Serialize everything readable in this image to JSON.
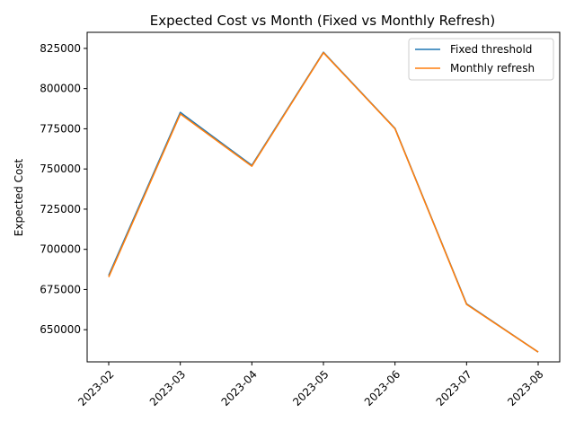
{
  "chart_data": {
    "type": "line",
    "title": "Expected Cost vs Month (Fixed vs Monthly Refresh)",
    "xlabel": "",
    "ylabel": "Expected Cost",
    "x": [
      "2023-02",
      "2023-03",
      "2023-04",
      "2023-05",
      "2023-06",
      "2023-07",
      "2023-08"
    ],
    "ylim": [
      630000,
      835000
    ],
    "yticks": [
      650000,
      675000,
      700000,
      725000,
      750000,
      775000,
      800000,
      825000
    ],
    "grid": false,
    "legend_position": "upper-right",
    "series": [
      {
        "name": "Fixed threshold",
        "color": "#1f77b4",
        "values": [
          683800,
          785200,
          752200,
          822600,
          775200,
          666100,
          636100
        ]
      },
      {
        "name": "Monthly refresh",
        "color": "#ff7f0e",
        "values": [
          682800,
          784200,
          751700,
          822300,
          775000,
          665800,
          636100
        ]
      }
    ]
  }
}
